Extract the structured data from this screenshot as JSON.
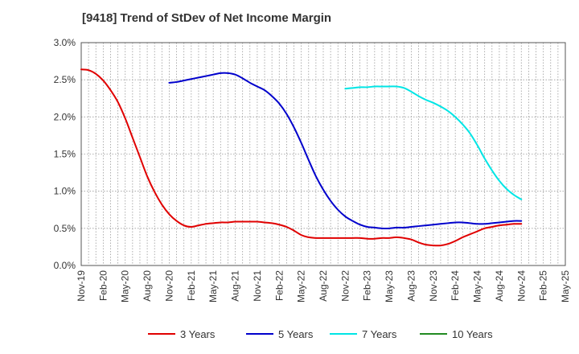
{
  "chart_data": {
    "type": "line",
    "title": "[9418]  Trend of StDev of Net Income Margin",
    "xlabel": "",
    "ylabel": "",
    "ylim": [
      0,
      3.0
    ],
    "y_ticks": [
      "0.0%",
      "0.5%",
      "1.0%",
      "1.5%",
      "2.0%",
      "2.5%",
      "3.0%"
    ],
    "x_ticks": [
      "Nov-19",
      "Feb-20",
      "May-20",
      "Aug-20",
      "Nov-20",
      "Feb-21",
      "May-21",
      "Aug-21",
      "Nov-21",
      "Feb-22",
      "May-22",
      "Aug-22",
      "Nov-22",
      "Feb-23",
      "May-23",
      "Aug-23",
      "Nov-23",
      "Feb-24",
      "May-24",
      "Aug-24",
      "Nov-24",
      "Feb-25",
      "May-25"
    ],
    "grid": true,
    "legend_position": "bottom",
    "series": [
      {
        "name": "3 Years",
        "color": "#e00000",
        "points": [
          [
            "Nov-19",
            2.64
          ],
          [
            "Dec-19",
            2.63
          ],
          [
            "Jan-20",
            2.58
          ],
          [
            "Feb-20",
            2.49
          ],
          [
            "Mar-20",
            2.36
          ],
          [
            "Apr-20",
            2.2
          ],
          [
            "May-20",
            1.98
          ],
          [
            "Jun-20",
            1.72
          ],
          [
            "Jul-20",
            1.46
          ],
          [
            "Aug-20",
            1.2
          ],
          [
            "Sep-20",
            0.99
          ],
          [
            "Oct-20",
            0.82
          ],
          [
            "Nov-20",
            0.69
          ],
          [
            "Dec-20",
            0.6
          ],
          [
            "Jan-21",
            0.54
          ],
          [
            "Feb-21",
            0.52
          ],
          [
            "Mar-21",
            0.54
          ],
          [
            "Apr-21",
            0.56
          ],
          [
            "May-21",
            0.57
          ],
          [
            "Jun-21",
            0.58
          ],
          [
            "Jul-21",
            0.58
          ],
          [
            "Aug-21",
            0.59
          ],
          [
            "Sep-21",
            0.59
          ],
          [
            "Oct-21",
            0.59
          ],
          [
            "Nov-21",
            0.59
          ],
          [
            "Dec-21",
            0.58
          ],
          [
            "Jan-22",
            0.57
          ],
          [
            "Feb-22",
            0.55
          ],
          [
            "Mar-22",
            0.52
          ],
          [
            "Apr-22",
            0.47
          ],
          [
            "May-22",
            0.41
          ],
          [
            "Jun-22",
            0.38
          ],
          [
            "Jul-22",
            0.37
          ],
          [
            "Aug-22",
            0.37
          ],
          [
            "Sep-22",
            0.37
          ],
          [
            "Oct-22",
            0.37
          ],
          [
            "Nov-22",
            0.37
          ],
          [
            "Dec-22",
            0.37
          ],
          [
            "Jan-23",
            0.37
          ],
          [
            "Feb-23",
            0.36
          ],
          [
            "Mar-23",
            0.36
          ],
          [
            "Apr-23",
            0.37
          ],
          [
            "May-23",
            0.37
          ],
          [
            "Jun-23",
            0.38
          ],
          [
            "Jul-23",
            0.37
          ],
          [
            "Aug-23",
            0.35
          ],
          [
            "Sep-23",
            0.31
          ],
          [
            "Oct-23",
            0.28
          ],
          [
            "Nov-23",
            0.27
          ],
          [
            "Dec-23",
            0.27
          ],
          [
            "Jan-24",
            0.29
          ],
          [
            "Feb-24",
            0.33
          ],
          [
            "Mar-24",
            0.38
          ],
          [
            "Apr-24",
            0.42
          ],
          [
            "May-24",
            0.46
          ],
          [
            "Jun-24",
            0.5
          ],
          [
            "Jul-24",
            0.52
          ],
          [
            "Aug-24",
            0.54
          ],
          [
            "Sep-24",
            0.55
          ],
          [
            "Oct-24",
            0.56
          ],
          [
            "Nov-24",
            0.56
          ]
        ]
      },
      {
        "name": "5 Years",
        "color": "#0000cc",
        "points": [
          [
            "Nov-20",
            2.46
          ],
          [
            "Dec-20",
            2.47
          ],
          [
            "Jan-21",
            2.49
          ],
          [
            "Feb-21",
            2.51
          ],
          [
            "Mar-21",
            2.53
          ],
          [
            "Apr-21",
            2.55
          ],
          [
            "May-21",
            2.57
          ],
          [
            "Jun-21",
            2.59
          ],
          [
            "Jul-21",
            2.59
          ],
          [
            "Aug-21",
            2.57
          ],
          [
            "Sep-21",
            2.52
          ],
          [
            "Oct-21",
            2.46
          ],
          [
            "Nov-21",
            2.41
          ],
          [
            "Dec-21",
            2.36
          ],
          [
            "Jan-22",
            2.28
          ],
          [
            "Feb-22",
            2.18
          ],
          [
            "Mar-22",
            2.04
          ],
          [
            "Apr-22",
            1.86
          ],
          [
            "May-22",
            1.65
          ],
          [
            "Jun-22",
            1.42
          ],
          [
            "Jul-22",
            1.2
          ],
          [
            "Aug-22",
            1.02
          ],
          [
            "Sep-22",
            0.87
          ],
          [
            "Oct-22",
            0.75
          ],
          [
            "Nov-22",
            0.66
          ],
          [
            "Dec-22",
            0.6
          ],
          [
            "Jan-23",
            0.55
          ],
          [
            "Feb-23",
            0.52
          ],
          [
            "Mar-23",
            0.51
          ],
          [
            "Apr-23",
            0.5
          ],
          [
            "May-23",
            0.5
          ],
          [
            "Jun-23",
            0.51
          ],
          [
            "Jul-23",
            0.51
          ],
          [
            "Aug-23",
            0.52
          ],
          [
            "Sep-23",
            0.53
          ],
          [
            "Oct-23",
            0.54
          ],
          [
            "Nov-23",
            0.55
          ],
          [
            "Dec-23",
            0.56
          ],
          [
            "Jan-24",
            0.57
          ],
          [
            "Feb-24",
            0.58
          ],
          [
            "Mar-24",
            0.58
          ],
          [
            "Apr-24",
            0.57
          ],
          [
            "May-24",
            0.56
          ],
          [
            "Jun-24",
            0.56
          ],
          [
            "Jul-24",
            0.57
          ],
          [
            "Aug-24",
            0.58
          ],
          [
            "Sep-24",
            0.59
          ],
          [
            "Oct-24",
            0.6
          ],
          [
            "Nov-24",
            0.6
          ]
        ]
      },
      {
        "name": "7 Years",
        "color": "#00e5e5",
        "points": [
          [
            "Nov-22",
            2.38
          ],
          [
            "Dec-22",
            2.39
          ],
          [
            "Jan-23",
            2.4
          ],
          [
            "Feb-23",
            2.4
          ],
          [
            "Mar-23",
            2.41
          ],
          [
            "Apr-23",
            2.41
          ],
          [
            "May-23",
            2.41
          ],
          [
            "Jun-23",
            2.41
          ],
          [
            "Jul-23",
            2.39
          ],
          [
            "Aug-23",
            2.34
          ],
          [
            "Sep-23",
            2.28
          ],
          [
            "Oct-23",
            2.23
          ],
          [
            "Nov-23",
            2.19
          ],
          [
            "Dec-23",
            2.14
          ],
          [
            "Jan-24",
            2.08
          ],
          [
            "Feb-24",
            2.0
          ],
          [
            "Mar-24",
            1.9
          ],
          [
            "Apr-24",
            1.78
          ],
          [
            "May-24",
            1.62
          ],
          [
            "Jun-24",
            1.44
          ],
          [
            "Jul-24",
            1.28
          ],
          [
            "Aug-24",
            1.14
          ],
          [
            "Sep-24",
            1.03
          ],
          [
            "Oct-24",
            0.95
          ],
          [
            "Nov-24",
            0.89
          ]
        ]
      },
      {
        "name": "10 Years",
        "color": "#228b22",
        "points": []
      }
    ]
  }
}
